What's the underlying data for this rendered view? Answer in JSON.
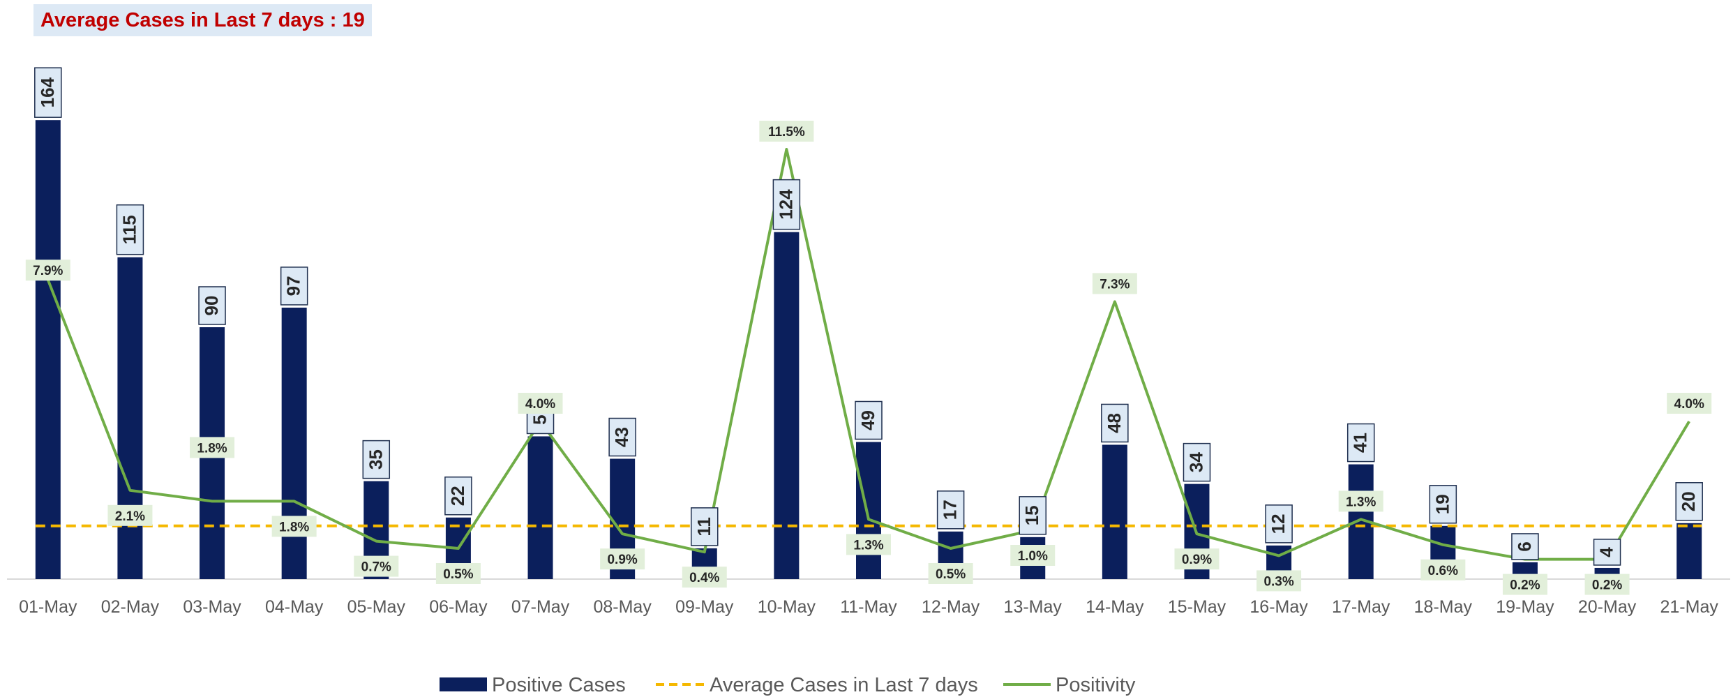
{
  "chart_data": {
    "type": "bar",
    "title": "Average Cases in Last 7 days : 19",
    "categories": [
      "01-May",
      "02-May",
      "03-May",
      "04-May",
      "05-May",
      "06-May",
      "07-May",
      "08-May",
      "09-May",
      "10-May",
      "11-May",
      "12-May",
      "13-May",
      "14-May",
      "15-May",
      "16-May",
      "17-May",
      "18-May",
      "19-May",
      "20-May",
      "21-May"
    ],
    "series": [
      {
        "name": "Positive Cases",
        "type": "bar",
        "color": "#0b1f5c",
        "values": [
          164,
          115,
          90,
          97,
          35,
          22,
          51,
          43,
          11,
          124,
          49,
          17,
          15,
          48,
          34,
          12,
          41,
          19,
          6,
          4,
          20
        ]
      },
      {
        "name": "Average Cases in Last 7 days",
        "type": "line",
        "style": "dashed",
        "color": "#f5b800",
        "values": [
          19,
          19,
          19,
          19,
          19,
          19,
          19,
          19,
          19,
          19,
          19,
          19,
          19,
          19,
          19,
          19,
          19,
          19,
          19,
          19,
          19
        ]
      },
      {
        "name": "Positivity",
        "type": "line",
        "color": "#70ad47",
        "unit": "%",
        "values": [
          7.9,
          2.1,
          1.8,
          1.8,
          0.7,
          0.5,
          4.0,
          0.9,
          0.4,
          11.5,
          1.3,
          0.5,
          1.0,
          7.3,
          0.9,
          0.3,
          1.3,
          0.6,
          0.2,
          0.2,
          4.0
        ],
        "labels": [
          "7.9%",
          "2.1%",
          "1.8%",
          "1.8%",
          "0.7%",
          "0.5%",
          "4.0%",
          "0.9%",
          "0.4%",
          "11.5%",
          "1.3%",
          "0.5%",
          "1.0%",
          "7.3%",
          "0.9%",
          "0.3%",
          "1.3%",
          "0.6%",
          "0.2%",
          "0.2%",
          "4.0%"
        ]
      }
    ],
    "ylim_cases": [
      0,
      180
    ],
    "ylim_positivity": [
      0,
      12.5
    ],
    "grid": false,
    "legend_position": "bottom"
  }
}
